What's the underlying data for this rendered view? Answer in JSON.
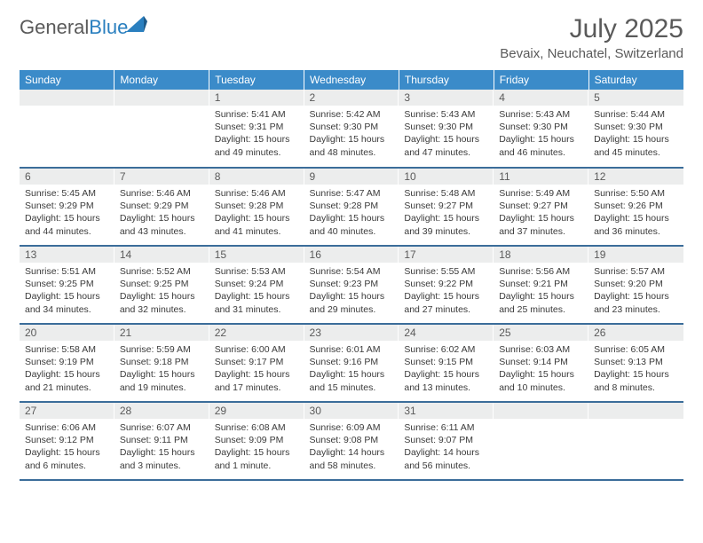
{
  "logo": {
    "word1": "General",
    "word2": "Blue"
  },
  "title": "July 2025",
  "location": "Bevaix, Neuchatel, Switzerland",
  "colors": {
    "header_bg": "#3b8bc9",
    "header_text": "#ffffff",
    "daynum_bg": "#eceded",
    "border": "#3b6d9a",
    "text": "#5a5a5a",
    "logo_blue": "#2a7fbf"
  },
  "weekdays": [
    "Sunday",
    "Monday",
    "Tuesday",
    "Wednesday",
    "Thursday",
    "Friday",
    "Saturday"
  ],
  "weeks": [
    [
      null,
      null,
      {
        "n": "1",
        "sr": "5:41 AM",
        "ss": "9:31 PM",
        "dl": "15 hours and 49 minutes."
      },
      {
        "n": "2",
        "sr": "5:42 AM",
        "ss": "9:30 PM",
        "dl": "15 hours and 48 minutes."
      },
      {
        "n": "3",
        "sr": "5:43 AM",
        "ss": "9:30 PM",
        "dl": "15 hours and 47 minutes."
      },
      {
        "n": "4",
        "sr": "5:43 AM",
        "ss": "9:30 PM",
        "dl": "15 hours and 46 minutes."
      },
      {
        "n": "5",
        "sr": "5:44 AM",
        "ss": "9:30 PM",
        "dl": "15 hours and 45 minutes."
      }
    ],
    [
      {
        "n": "6",
        "sr": "5:45 AM",
        "ss": "9:29 PM",
        "dl": "15 hours and 44 minutes."
      },
      {
        "n": "7",
        "sr": "5:46 AM",
        "ss": "9:29 PM",
        "dl": "15 hours and 43 minutes."
      },
      {
        "n": "8",
        "sr": "5:46 AM",
        "ss": "9:28 PM",
        "dl": "15 hours and 41 minutes."
      },
      {
        "n": "9",
        "sr": "5:47 AM",
        "ss": "9:28 PM",
        "dl": "15 hours and 40 minutes."
      },
      {
        "n": "10",
        "sr": "5:48 AM",
        "ss": "9:27 PM",
        "dl": "15 hours and 39 minutes."
      },
      {
        "n": "11",
        "sr": "5:49 AM",
        "ss": "9:27 PM",
        "dl": "15 hours and 37 minutes."
      },
      {
        "n": "12",
        "sr": "5:50 AM",
        "ss": "9:26 PM",
        "dl": "15 hours and 36 minutes."
      }
    ],
    [
      {
        "n": "13",
        "sr": "5:51 AM",
        "ss": "9:25 PM",
        "dl": "15 hours and 34 minutes."
      },
      {
        "n": "14",
        "sr": "5:52 AM",
        "ss": "9:25 PM",
        "dl": "15 hours and 32 minutes."
      },
      {
        "n": "15",
        "sr": "5:53 AM",
        "ss": "9:24 PM",
        "dl": "15 hours and 31 minutes."
      },
      {
        "n": "16",
        "sr": "5:54 AM",
        "ss": "9:23 PM",
        "dl": "15 hours and 29 minutes."
      },
      {
        "n": "17",
        "sr": "5:55 AM",
        "ss": "9:22 PM",
        "dl": "15 hours and 27 minutes."
      },
      {
        "n": "18",
        "sr": "5:56 AM",
        "ss": "9:21 PM",
        "dl": "15 hours and 25 minutes."
      },
      {
        "n": "19",
        "sr": "5:57 AM",
        "ss": "9:20 PM",
        "dl": "15 hours and 23 minutes."
      }
    ],
    [
      {
        "n": "20",
        "sr": "5:58 AM",
        "ss": "9:19 PM",
        "dl": "15 hours and 21 minutes."
      },
      {
        "n": "21",
        "sr": "5:59 AM",
        "ss": "9:18 PM",
        "dl": "15 hours and 19 minutes."
      },
      {
        "n": "22",
        "sr": "6:00 AM",
        "ss": "9:17 PM",
        "dl": "15 hours and 17 minutes."
      },
      {
        "n": "23",
        "sr": "6:01 AM",
        "ss": "9:16 PM",
        "dl": "15 hours and 15 minutes."
      },
      {
        "n": "24",
        "sr": "6:02 AM",
        "ss": "9:15 PM",
        "dl": "15 hours and 13 minutes."
      },
      {
        "n": "25",
        "sr": "6:03 AM",
        "ss": "9:14 PM",
        "dl": "15 hours and 10 minutes."
      },
      {
        "n": "26",
        "sr": "6:05 AM",
        "ss": "9:13 PM",
        "dl": "15 hours and 8 minutes."
      }
    ],
    [
      {
        "n": "27",
        "sr": "6:06 AM",
        "ss": "9:12 PM",
        "dl": "15 hours and 6 minutes."
      },
      {
        "n": "28",
        "sr": "6:07 AM",
        "ss": "9:11 PM",
        "dl": "15 hours and 3 minutes."
      },
      {
        "n": "29",
        "sr": "6:08 AM",
        "ss": "9:09 PM",
        "dl": "15 hours and 1 minute."
      },
      {
        "n": "30",
        "sr": "6:09 AM",
        "ss": "9:08 PM",
        "dl": "14 hours and 58 minutes."
      },
      {
        "n": "31",
        "sr": "6:11 AM",
        "ss": "9:07 PM",
        "dl": "14 hours and 56 minutes."
      },
      null,
      null
    ]
  ],
  "labels": {
    "sunrise": "Sunrise:",
    "sunset": "Sunset:",
    "daylight": "Daylight:"
  }
}
